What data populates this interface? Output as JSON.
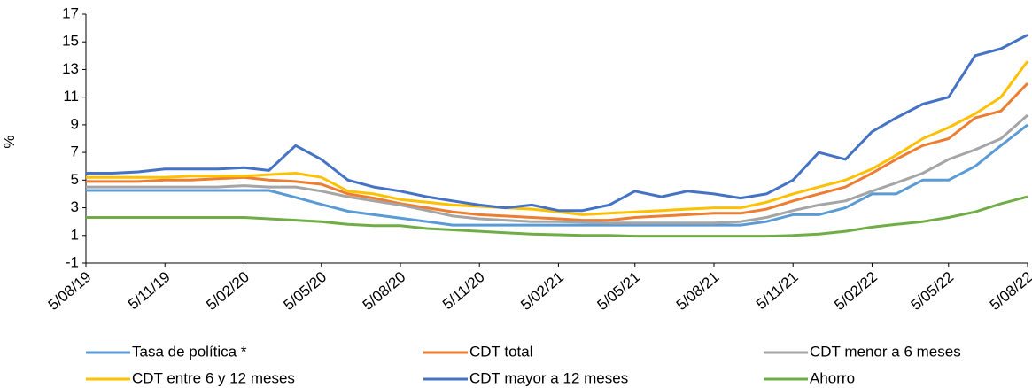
{
  "chart_data": {
    "type": "line",
    "ylabel": "%",
    "x": [
      "5/08/19",
      "5/09/19",
      "5/10/19",
      "5/11/19",
      "5/12/19",
      "5/01/20",
      "5/02/20",
      "5/03/20",
      "5/04/20",
      "5/05/20",
      "5/06/20",
      "5/07/20",
      "5/08/20",
      "5/09/20",
      "5/10/20",
      "5/11/20",
      "5/12/20",
      "5/01/21",
      "5/02/21",
      "5/03/21",
      "5/04/21",
      "5/05/21",
      "5/06/21",
      "5/07/21",
      "5/08/21",
      "5/09/21",
      "5/10/21",
      "5/11/21",
      "5/12/21",
      "5/01/22",
      "5/02/22",
      "5/03/22",
      "5/04/22",
      "5/05/22",
      "5/06/22",
      "5/07/22",
      "5/08/22"
    ],
    "xticks": [
      "5/08/19",
      "5/11/19",
      "5/02/20",
      "5/05/20",
      "5/08/20",
      "5/11/20",
      "5/02/21",
      "5/05/21",
      "5/08/21",
      "5/11/21",
      "5/02/22",
      "5/05/22",
      "5/08/22"
    ],
    "ylim": [
      -1,
      17
    ],
    "yticks": [
      -1,
      1,
      3,
      5,
      7,
      9,
      11,
      13,
      15,
      17
    ],
    "series": [
      {
        "name": "Tasa de política *",
        "color": "#5b9bd5",
        "values": [
          4.25,
          4.25,
          4.25,
          4.25,
          4.25,
          4.25,
          4.25,
          4.25,
          3.75,
          3.25,
          2.75,
          2.5,
          2.25,
          2.0,
          1.75,
          1.75,
          1.75,
          1.75,
          1.75,
          1.75,
          1.75,
          1.75,
          1.75,
          1.75,
          1.75,
          1.75,
          2.0,
          2.5,
          2.5,
          3.0,
          4.0,
          4.0,
          5.0,
          5.0,
          6.0,
          7.5,
          9.0
        ]
      },
      {
        "name": "CDT total",
        "color": "#ed7d31",
        "values": [
          4.9,
          4.9,
          4.9,
          5.0,
          5.0,
          5.1,
          5.2,
          5.0,
          4.9,
          4.7,
          4.0,
          3.7,
          3.3,
          3.0,
          2.7,
          2.5,
          2.4,
          2.3,
          2.2,
          2.1,
          2.1,
          2.3,
          2.4,
          2.5,
          2.6,
          2.6,
          2.9,
          3.5,
          4.0,
          4.5,
          5.5,
          6.5,
          7.5,
          8.0,
          9.5,
          10.0,
          12.0
        ]
      },
      {
        "name": "CDT menor a 6 meses",
        "color": "#a5a5a5",
        "values": [
          4.5,
          4.5,
          4.5,
          4.5,
          4.5,
          4.5,
          4.6,
          4.5,
          4.5,
          4.2,
          3.8,
          3.5,
          3.2,
          2.8,
          2.4,
          2.2,
          2.1,
          2.0,
          2.0,
          1.95,
          1.9,
          1.9,
          1.9,
          1.9,
          1.9,
          2.0,
          2.3,
          2.8,
          3.2,
          3.5,
          4.2,
          4.8,
          5.5,
          6.5,
          7.2,
          8.0,
          9.7
        ]
      },
      {
        "name": "CDT entre 6 y 12 meses",
        "color": "#ffc000",
        "values": [
          5.2,
          5.2,
          5.2,
          5.2,
          5.3,
          5.3,
          5.3,
          5.4,
          5.5,
          5.2,
          4.2,
          4.0,
          3.6,
          3.4,
          3.2,
          3.1,
          3.0,
          2.9,
          2.7,
          2.5,
          2.6,
          2.7,
          2.8,
          2.9,
          3.0,
          3.0,
          3.4,
          4.0,
          4.5,
          5.0,
          5.8,
          6.8,
          8.0,
          8.8,
          9.8,
          11.0,
          13.6
        ]
      },
      {
        "name": "CDT mayor a 12 meses",
        "color": "#4472c4",
        "values": [
          5.5,
          5.5,
          5.6,
          5.8,
          5.8,
          5.8,
          5.9,
          5.7,
          7.5,
          6.5,
          5.0,
          4.5,
          4.2,
          3.8,
          3.5,
          3.2,
          3.0,
          3.2,
          2.8,
          2.8,
          3.2,
          4.2,
          3.8,
          4.2,
          4.0,
          3.7,
          4.0,
          5.0,
          7.0,
          6.5,
          8.5,
          9.5,
          10.5,
          11.0,
          14.0,
          14.5,
          15.5
        ]
      },
      {
        "name": "Ahorro",
        "color": "#70ad47",
        "values": [
          2.3,
          2.3,
          2.3,
          2.3,
          2.3,
          2.3,
          2.3,
          2.2,
          2.1,
          2.0,
          1.8,
          1.7,
          1.7,
          1.5,
          1.4,
          1.3,
          1.2,
          1.1,
          1.05,
          1.0,
          1.0,
          0.95,
          0.95,
          0.95,
          0.95,
          0.95,
          0.95,
          1.0,
          1.1,
          1.3,
          1.6,
          1.8,
          2.0,
          2.3,
          2.7,
          3.3,
          3.8
        ]
      }
    ]
  }
}
